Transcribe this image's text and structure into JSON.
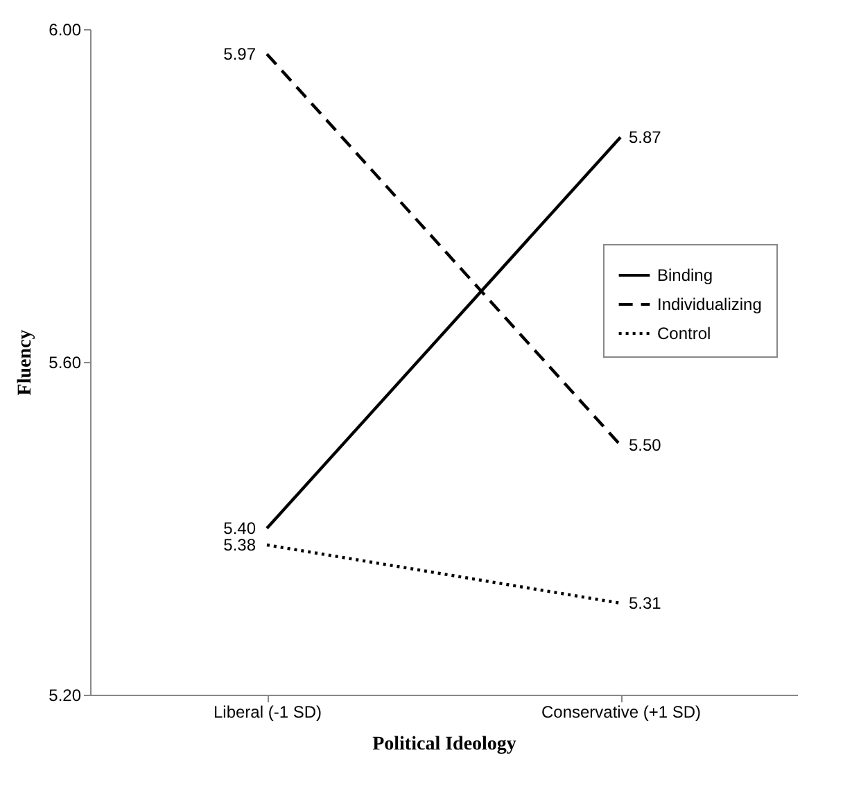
{
  "chart_data": {
    "type": "line",
    "xlabel": "Political Ideology",
    "ylabel": "Fluency",
    "categories": [
      "Liberal (-1 SD)",
      "Conservative (+1 SD)"
    ],
    "series": [
      {
        "name": "Binding",
        "color": "#000000",
        "line_style": "solid",
        "values": [
          5.4,
          5.87
        ],
        "value_labels": [
          "5.40",
          "5.87"
        ]
      },
      {
        "name": "Individualizing",
        "color": "#000000",
        "line_style": "dashed",
        "values": [
          5.97,
          5.5
        ],
        "value_labels": [
          "5.97",
          "5.50"
        ]
      },
      {
        "name": "Control",
        "color": "#000000",
        "line_style": "dotted",
        "values": [
          5.38,
          5.31
        ],
        "value_labels": [
          "5.38",
          "5.31"
        ]
      }
    ],
    "ylim": [
      5.2,
      6.0
    ],
    "yticks": [
      {
        "value": 5.2,
        "label": "5.20"
      },
      {
        "value": 5.6,
        "label": "5.60"
      },
      {
        "value": 6.0,
        "label": "6.00"
      }
    ],
    "grid": false,
    "legend": "right",
    "marker": "none"
  }
}
